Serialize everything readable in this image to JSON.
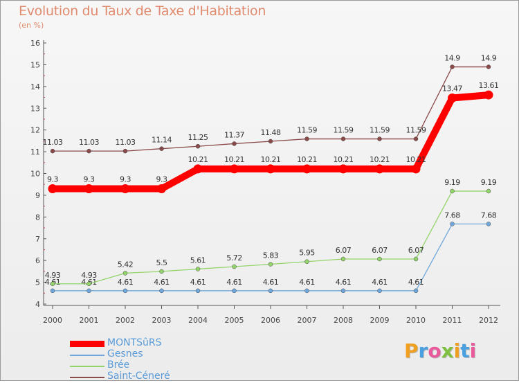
{
  "chart_data": {
    "type": "line",
    "title": "Evolution du Taux de Taxe d'Habitation",
    "subtitle": "(en %)",
    "xlabel": "",
    "ylabel": "",
    "categories": [
      "2000",
      "2001",
      "2002",
      "2003",
      "2004",
      "2005",
      "2006",
      "2007",
      "2008",
      "2009",
      "2010",
      "2011",
      "2012"
    ],
    "ylim": [
      4,
      16
    ],
    "yticks": [
      "4",
      "5",
      "6",
      "7",
      "8",
      "9",
      "10",
      "11",
      "12",
      "13",
      "14",
      "15",
      "16"
    ],
    "series": [
      {
        "name": "MONTSûRS",
        "color": "#ff0000",
        "values": [
          9.3,
          9.3,
          9.3,
          9.3,
          10.21,
          10.21,
          10.21,
          10.21,
          10.21,
          10.21,
          10.21,
          13.47,
          13.61
        ],
        "labels": [
          "9.3",
          "9.3",
          "9.3",
          "9.3",
          "10.21",
          "10.21",
          "10.21",
          "10.21",
          "10.21",
          "10.21",
          "10.21",
          "13.47",
          "13.61"
        ]
      },
      {
        "name": "Gesnes",
        "color": "#6fa8dc",
        "values": [
          4.61,
          4.61,
          4.61,
          4.61,
          4.61,
          4.61,
          4.61,
          4.61,
          4.61,
          4.61,
          4.61,
          7.68,
          7.68
        ],
        "labels": [
          "4.61",
          "4.61",
          "4.61",
          "4.61",
          "4.61",
          "4.61",
          "4.61",
          "4.61",
          "4.61",
          "4.61",
          "4.61",
          "7.68",
          "7.68"
        ]
      },
      {
        "name": "Brée",
        "color": "#93d46b",
        "values": [
          4.93,
          4.93,
          5.42,
          5.5,
          5.61,
          5.72,
          5.83,
          5.95,
          6.07,
          6.07,
          6.07,
          9.19,
          9.19
        ],
        "labels": [
          "4.93",
          "4.93",
          "5.42",
          "5.5",
          "5.61",
          "5.72",
          "5.83",
          "5.95",
          "6.07",
          "6.07",
          "6.07",
          "9.19",
          "9.19"
        ]
      },
      {
        "name": "Saint-Céneré",
        "color": "#8b4a4a",
        "values": [
          11.03,
          11.03,
          11.03,
          11.14,
          11.25,
          11.37,
          11.48,
          11.59,
          11.59,
          11.59,
          11.59,
          14.9,
          14.9
        ],
        "labels": [
          "11.03",
          "11.03",
          "11.03",
          "11.14",
          "11.25",
          "11.37",
          "11.48",
          "11.59",
          "11.59",
          "11.59",
          "11.59",
          "14.9",
          "14.9"
        ]
      }
    ],
    "legend_position": "bottom-left",
    "grid": false
  },
  "logo": {
    "letters": [
      "P",
      "r",
      "o",
      "x",
      "i",
      "t",
      "i"
    ],
    "colors": [
      "#f0a020",
      "#4aa0e0",
      "#e85a9a",
      "#80c040",
      "#f0a020",
      "#4aa0e0",
      "#e85a9a"
    ]
  }
}
